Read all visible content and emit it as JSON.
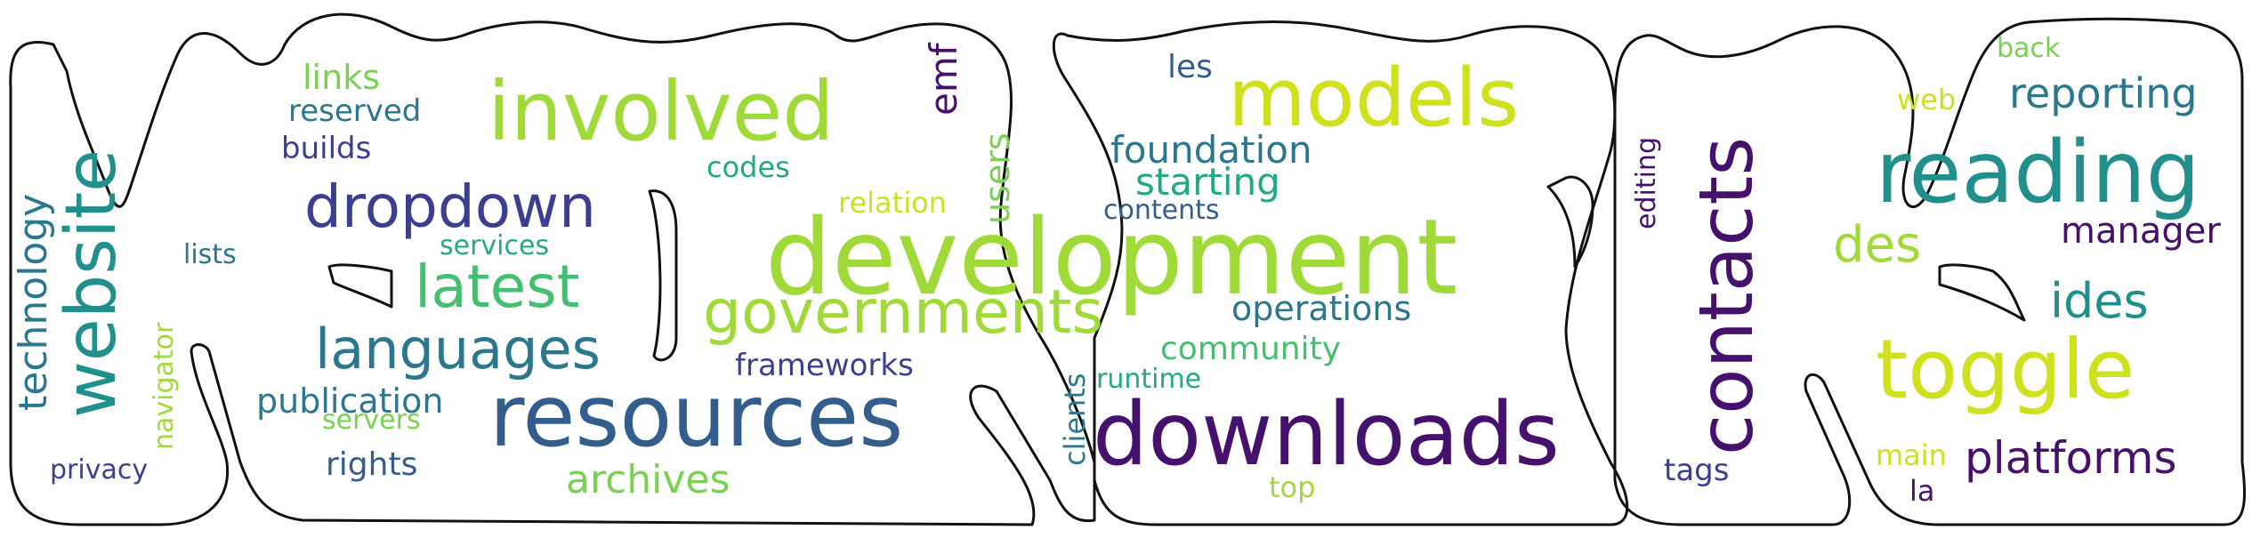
{
  "palette": {
    "dark_purple": "#46116c",
    "indigo": "#3b3f8f",
    "blue": "#335d8d",
    "teal_blue": "#2a778e",
    "teal": "#21908c",
    "green_teal": "#22a884",
    "green": "#44bf70",
    "light_green": "#7ad151",
    "yellow_green": "#a0da39",
    "yellow": "#cfe11c"
  },
  "words": [
    {
      "id": "website",
      "text": "website"
    },
    {
      "id": "technology",
      "text": "technology"
    },
    {
      "id": "navigator",
      "text": "navigator"
    },
    {
      "id": "privacy",
      "text": "privacy"
    },
    {
      "id": "lists",
      "text": "lists"
    },
    {
      "id": "links",
      "text": "links"
    },
    {
      "id": "reserved",
      "text": "reserved"
    },
    {
      "id": "builds",
      "text": "builds"
    },
    {
      "id": "dropdown",
      "text": "dropdown"
    },
    {
      "id": "services",
      "text": "services"
    },
    {
      "id": "latest",
      "text": "latest"
    },
    {
      "id": "languages",
      "text": "languages"
    },
    {
      "id": "publication",
      "text": "publication"
    },
    {
      "id": "servers",
      "text": "servers"
    },
    {
      "id": "rights",
      "text": "rights"
    },
    {
      "id": "involved",
      "text": "involved"
    },
    {
      "id": "emf",
      "text": "emf"
    },
    {
      "id": "users",
      "text": "users"
    },
    {
      "id": "codes",
      "text": "codes"
    },
    {
      "id": "relation",
      "text": "relation"
    },
    {
      "id": "development",
      "text": "development"
    },
    {
      "id": "governments",
      "text": "governments"
    },
    {
      "id": "frameworks",
      "text": "frameworks"
    },
    {
      "id": "resources",
      "text": "resources"
    },
    {
      "id": "archives",
      "text": "archives"
    },
    {
      "id": "clients",
      "text": "clients"
    },
    {
      "id": "les",
      "text": "les"
    },
    {
      "id": "models",
      "text": "models"
    },
    {
      "id": "foundation",
      "text": "foundation"
    },
    {
      "id": "starting",
      "text": "starting"
    },
    {
      "id": "contents",
      "text": "contents"
    },
    {
      "id": "operations",
      "text": "operations"
    },
    {
      "id": "community",
      "text": "community"
    },
    {
      "id": "runtime",
      "text": "runtime"
    },
    {
      "id": "downloads",
      "text": "downloads"
    },
    {
      "id": "top",
      "text": "top"
    },
    {
      "id": "editing",
      "text": "editing"
    },
    {
      "id": "contacts",
      "text": "contacts"
    },
    {
      "id": "tags",
      "text": "tags"
    },
    {
      "id": "back",
      "text": "back"
    },
    {
      "id": "web",
      "text": "web"
    },
    {
      "id": "reporting",
      "text": "reporting"
    },
    {
      "id": "reading",
      "text": "reading"
    },
    {
      "id": "manager",
      "text": "manager"
    },
    {
      "id": "des",
      "text": "des"
    },
    {
      "id": "ides",
      "text": "ides"
    },
    {
      "id": "toggle",
      "text": "toggle"
    },
    {
      "id": "main",
      "text": "main"
    },
    {
      "id": "platforms",
      "text": "platforms"
    },
    {
      "id": "la",
      "text": "la"
    }
  ]
}
